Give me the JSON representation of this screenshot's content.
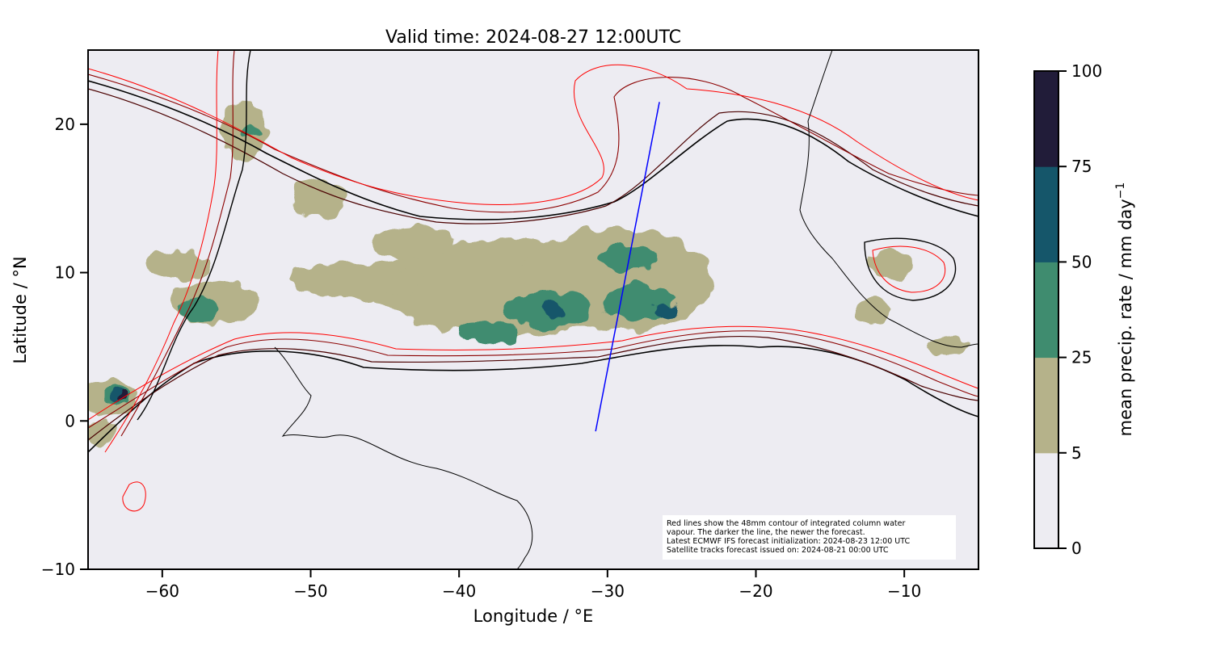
{
  "chart_data": {
    "type": "map",
    "title": "Valid time: 2024-08-27 12:00UTC",
    "xlabel": "Longitude / °E",
    "ylabel": "Latitude / °N",
    "xlim": [
      -65,
      -5
    ],
    "ylim": [
      -10,
      25
    ],
    "x_ticks": [
      {
        "value": -60,
        "label": "−60"
      },
      {
        "value": -50,
        "label": "−50"
      },
      {
        "value": -40,
        "label": "−40"
      },
      {
        "value": -30,
        "label": "−30"
      },
      {
        "value": -20,
        "label": "−20"
      },
      {
        "value": -10,
        "label": "−10"
      }
    ],
    "y_ticks": [
      {
        "value": 20,
        "label": "20"
      },
      {
        "value": 10,
        "label": "10"
      },
      {
        "value": 0,
        "label": "0"
      },
      {
        "value": -10,
        "label": "−10"
      }
    ],
    "colorbar": {
      "label": "mean precip. rate / mm day",
      "label_superscript": "−1",
      "levels": [
        0,
        5,
        25,
        50,
        75,
        100
      ],
      "tick_labels": [
        "0",
        "5",
        "25",
        "50",
        "75",
        "100"
      ],
      "colors": [
        "#edecf2",
        "#b5b28a",
        "#3f8c6f",
        "#15566a",
        "#211c39"
      ]
    },
    "annotation": [
      "Red lines show the 48mm contour of integrated column water",
      "vapour. The darker the line, the newer the forecast.",
      "Latest ECMWF IFS forecast initialization: 2024-08-23 12:00 UTC",
      "Satellite tracks forecast issued on: 2024-08-21 00:00 UTC"
    ],
    "satellite_track": {
      "color": "#0000ff",
      "points": [
        [
          -30.8,
          -0.7
        ],
        [
          -26.5,
          21.5
        ]
      ]
    },
    "water_vapour_contour_colors": [
      "#ff0000",
      "#cc0000",
      "#8b0000",
      "#4a0000",
      "#000000"
    ],
    "precip_regions": [
      {
        "level": 1,
        "center": [
          -36.5,
          9.0
        ],
        "radius": [
          9.5,
          3.2
        ]
      },
      {
        "level": 1,
        "center": [
          -29.5,
          9.5
        ],
        "radius": [
          6.5,
          3.5
        ]
      },
      {
        "level": 1,
        "center": [
          -43.0,
          12.0
        ],
        "radius": [
          3.0,
          1.2
        ]
      },
      {
        "level": 1,
        "center": [
          -47.0,
          9.5
        ],
        "radius": [
          4.5,
          1.2
        ]
      },
      {
        "level": 1,
        "center": [
          -56.5,
          8.0
        ],
        "radius": [
          3.0,
          1.5
        ]
      },
      {
        "level": 1,
        "center": [
          -54.5,
          19.5
        ],
        "radius": [
          1.5,
          2.0
        ]
      },
      {
        "level": 1,
        "center": [
          -49.5,
          15.0
        ],
        "radius": [
          1.8,
          1.3
        ]
      },
      {
        "level": 1,
        "center": [
          -59.0,
          10.5
        ],
        "radius": [
          2.0,
          1.0
        ]
      },
      {
        "level": 1,
        "center": [
          -11.0,
          10.5
        ],
        "radius": [
          1.5,
          1.0
        ]
      },
      {
        "level": 1,
        "center": [
          -12.0,
          7.5
        ],
        "radius": [
          1.2,
          1.0
        ]
      },
      {
        "level": 1,
        "center": [
          -7.0,
          5.0
        ],
        "radius": [
          1.5,
          0.6
        ]
      },
      {
        "level": 1,
        "center": [
          -63.5,
          1.5
        ],
        "radius": [
          2.0,
          1.2
        ]
      },
      {
        "level": 1,
        "center": [
          -64.0,
          -0.8
        ],
        "radius": [
          1.2,
          0.8
        ]
      },
      {
        "level": 2,
        "center": [
          -34.0,
          7.5
        ],
        "radius": [
          3.0,
          1.2
        ]
      },
      {
        "level": 2,
        "center": [
          -28.0,
          8.0
        ],
        "radius": [
          2.5,
          1.2
        ]
      },
      {
        "level": 2,
        "center": [
          -28.5,
          11.0
        ],
        "radius": [
          2.0,
          0.9
        ]
      },
      {
        "level": 2,
        "center": [
          -38.0,
          6.0
        ],
        "radius": [
          2.0,
          0.8
        ]
      },
      {
        "level": 2,
        "center": [
          -57.5,
          7.5
        ],
        "radius": [
          1.5,
          0.8
        ]
      },
      {
        "level": 2,
        "center": [
          -54.0,
          19.5
        ],
        "radius": [
          0.6,
          0.5
        ]
      },
      {
        "level": 2,
        "center": [
          -63.0,
          1.8
        ],
        "radius": [
          1.0,
          0.5
        ]
      },
      {
        "level": 3,
        "center": [
          -33.5,
          7.5
        ],
        "radius": [
          0.9,
          0.5
        ]
      },
      {
        "level": 3,
        "center": [
          -26.0,
          7.5
        ],
        "radius": [
          1.0,
          0.4
        ]
      },
      {
        "level": 3,
        "center": [
          -63.0,
          1.8
        ],
        "radius": [
          0.5,
          0.3
        ]
      },
      {
        "level": 4,
        "center": [
          -62.5,
          1.8
        ],
        "radius": [
          0.3,
          0.2
        ]
      }
    ]
  }
}
